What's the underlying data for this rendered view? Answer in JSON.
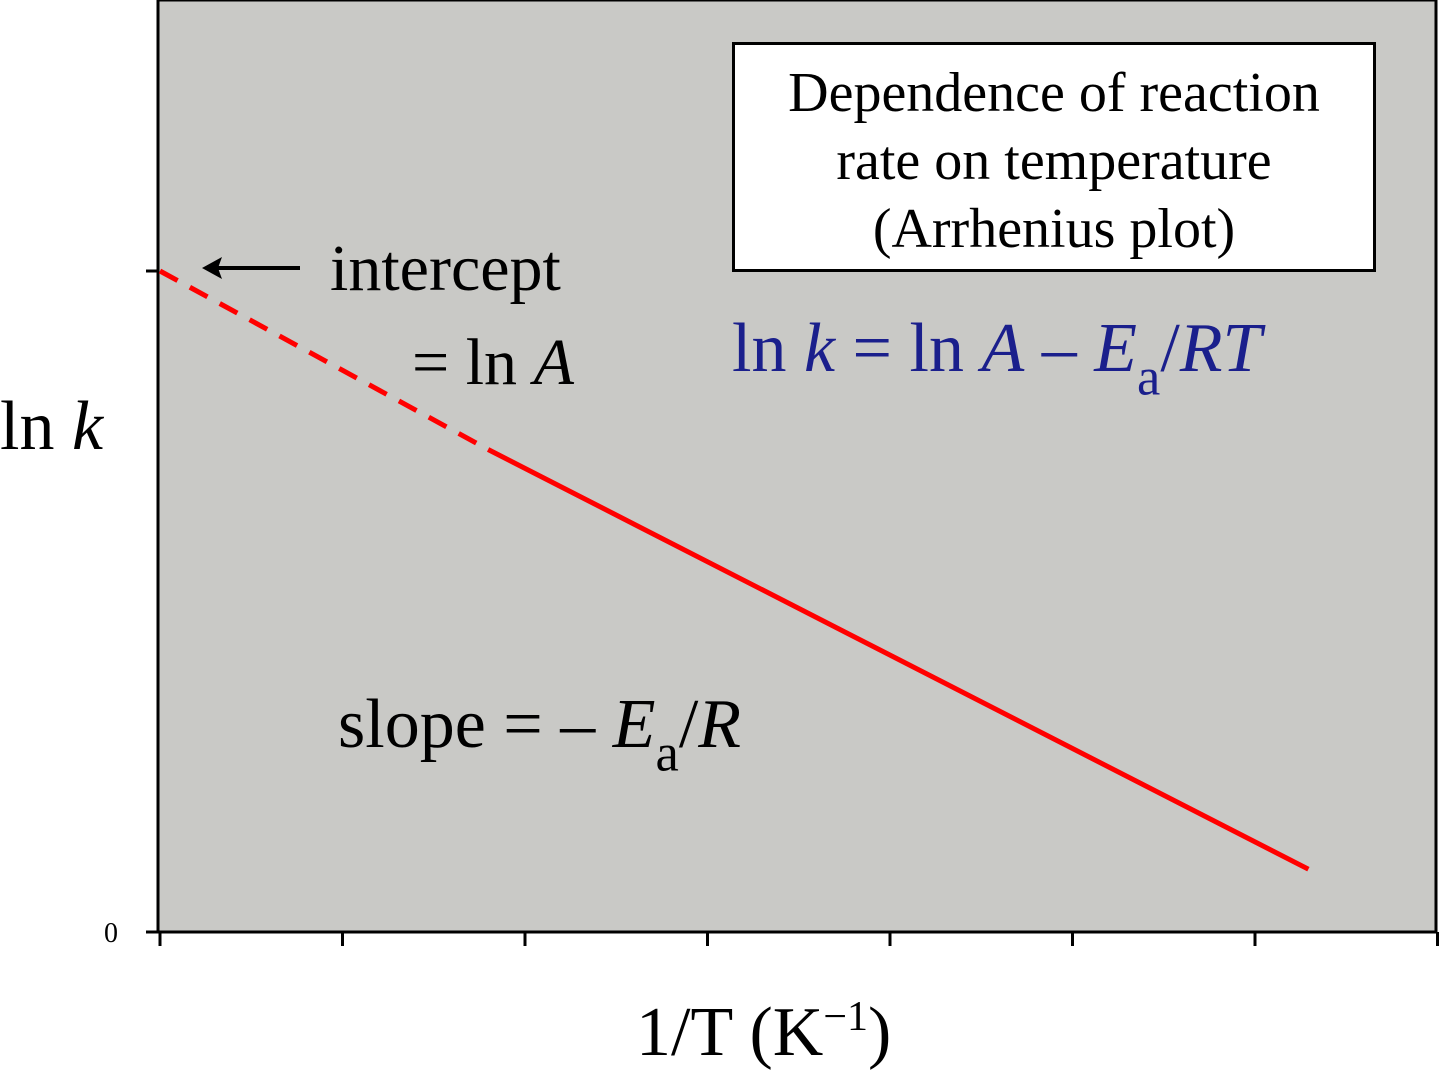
{
  "chart_data": {
    "type": "line",
    "title": "Dependence of reaction rate on temperature (Arrhenius plot)",
    "title_lines": [
      "Dependence of reaction",
      "rate on temperature",
      "(Arrhenius plot)"
    ],
    "xlabel": "1/T (K",
    "xlabel_sup": "−1",
    "xlabel_end": ")",
    "ylabel_prefix": "ln ",
    "ylabel_var": "k",
    "yticks": [
      "0"
    ],
    "annotations": {
      "intercept_line1": "intercept",
      "intercept_eq": "= ln ",
      "intercept_var": "A",
      "equation_ln1": "ln ",
      "equation_k": "k",
      "equation_mid": " = ln ",
      "equation_A": "A",
      "equation_minus": " – ",
      "equation_E": "E",
      "equation_sub": "a",
      "equation_slash": "/",
      "equation_RT": "RT",
      "slope_text": "slope  =  – ",
      "slope_E": "E",
      "slope_sub": "a",
      "slope_slash": "/",
      "slope_R": "R"
    },
    "series": [
      {
        "style": "dashed",
        "color": "#ff0000",
        "x": [
          0.0,
          0.18
        ],
        "y": [
          1.0,
          0.73
        ]
      },
      {
        "style": "solid",
        "color": "#ff0000",
        "x": [
          0.18,
          0.63
        ],
        "y": [
          0.73,
          0.095
        ]
      }
    ],
    "xlim": [
      0,
      0.7
    ],
    "ylim": [
      0,
      1.0
    ],
    "x_tick_count": 8,
    "grid": false,
    "plot_background": "#c9c9c6",
    "equation_color": "#1a1f8c"
  }
}
